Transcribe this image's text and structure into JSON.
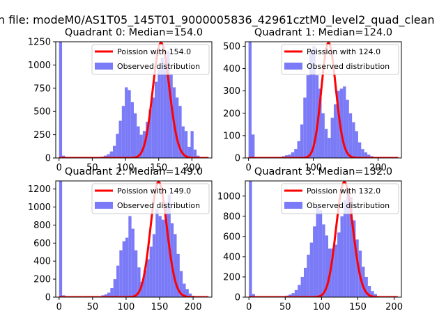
{
  "figure_title": "n file: modeM0/AS1T05_145T01_9000005836_42961cztM0_level2_quad_clean",
  "legend_labels": {
    "observed": "Observed distribution"
  },
  "colors": {
    "hist": "#7b7bf7",
    "poisson": "#ff0000",
    "axis": "#000000"
  },
  "chart_data": [
    {
      "type": "bar",
      "title": "Quadrant 0: Median=154.0",
      "poisson_label": "Poission with 154.0",
      "mean": 154.0,
      "xlim": [
        -5,
        230
      ],
      "ylim": [
        0,
        1250
      ],
      "xticks": [
        0,
        50,
        100,
        150,
        200
      ],
      "xticklabels": [
        "0",
        "50",
        "100",
        "150",
        "200"
      ],
      "yticks": [
        0,
        250,
        500,
        750,
        1000,
        1250
      ],
      "bin_width": 4.5,
      "bins": [
        {
          "x": 0,
          "y": 1250
        },
        {
          "x": 4.5,
          "y": 25
        },
        {
          "x": 54,
          "y": 5
        },
        {
          "x": 58.5,
          "y": 8
        },
        {
          "x": 63,
          "y": 15
        },
        {
          "x": 67.5,
          "y": 25
        },
        {
          "x": 72,
          "y": 40
        },
        {
          "x": 76.5,
          "y": 70
        },
        {
          "x": 81,
          "y": 130
        },
        {
          "x": 85.5,
          "y": 260
        },
        {
          "x": 90,
          "y": 400
        },
        {
          "x": 94.5,
          "y": 560
        },
        {
          "x": 99,
          "y": 760
        },
        {
          "x": 103.5,
          "y": 730
        },
        {
          "x": 108,
          "y": 600
        },
        {
          "x": 112.5,
          "y": 480
        },
        {
          "x": 117,
          "y": 340
        },
        {
          "x": 121.5,
          "y": 250
        },
        {
          "x": 126,
          "y": 290
        },
        {
          "x": 130.5,
          "y": 390
        },
        {
          "x": 135,
          "y": 520
        },
        {
          "x": 139.5,
          "y": 650
        },
        {
          "x": 144,
          "y": 820
        },
        {
          "x": 148.5,
          "y": 950
        },
        {
          "x": 153,
          "y": 1080
        },
        {
          "x": 157.5,
          "y": 1030
        },
        {
          "x": 162,
          "y": 1150
        },
        {
          "x": 166.5,
          "y": 900
        },
        {
          "x": 171,
          "y": 760
        },
        {
          "x": 175.5,
          "y": 650
        },
        {
          "x": 180,
          "y": 560
        },
        {
          "x": 184.5,
          "y": 340
        },
        {
          "x": 189,
          "y": 290
        },
        {
          "x": 193.5,
          "y": 120
        },
        {
          "x": 198,
          "y": 290
        },
        {
          "x": 202.5,
          "y": 90
        },
        {
          "x": 207,
          "y": 25
        },
        {
          "x": 211.5,
          "y": 5
        }
      ]
    },
    {
      "type": "bar",
      "title": "Quadrant 1: Median=124.0",
      "poisson_label": "Poission with 124.0",
      "mean": 124.0,
      "xlim": [
        -5,
        236
      ],
      "ylim": [
        0,
        520
      ],
      "xticks": [
        0,
        100,
        200
      ],
      "xticklabels": [
        "0",
        "100",
        "200"
      ],
      "yticks": [
        0,
        100,
        200,
        300,
        400,
        500
      ],
      "bin_width": 4.7,
      "bins": [
        {
          "x": 0,
          "y": 520
        },
        {
          "x": 4.7,
          "y": 105
        },
        {
          "x": 47,
          "y": 5
        },
        {
          "x": 51.7,
          "y": 8
        },
        {
          "x": 56.4,
          "y": 12
        },
        {
          "x": 61.1,
          "y": 15
        },
        {
          "x": 65.8,
          "y": 25
        },
        {
          "x": 70.5,
          "y": 40
        },
        {
          "x": 75.2,
          "y": 75
        },
        {
          "x": 79.9,
          "y": 150
        },
        {
          "x": 84.6,
          "y": 270
        },
        {
          "x": 89.3,
          "y": 370
        },
        {
          "x": 94,
          "y": 480
        },
        {
          "x": 98.7,
          "y": 500
        },
        {
          "x": 103.4,
          "y": 370
        },
        {
          "x": 108.1,
          "y": 310
        },
        {
          "x": 112.8,
          "y": 200
        },
        {
          "x": 117.5,
          "y": 130
        },
        {
          "x": 122.2,
          "y": 90
        },
        {
          "x": 126.9,
          "y": 180
        },
        {
          "x": 131.6,
          "y": 240
        },
        {
          "x": 136.3,
          "y": 300
        },
        {
          "x": 141,
          "y": 310
        },
        {
          "x": 145.7,
          "y": 320
        },
        {
          "x": 150.4,
          "y": 260
        },
        {
          "x": 155.1,
          "y": 200
        },
        {
          "x": 159.8,
          "y": 160
        },
        {
          "x": 164.5,
          "y": 120
        },
        {
          "x": 169.2,
          "y": 70
        },
        {
          "x": 173.9,
          "y": 40
        },
        {
          "x": 178.6,
          "y": 25
        },
        {
          "x": 183.3,
          "y": 15
        },
        {
          "x": 188,
          "y": 8
        }
      ]
    },
    {
      "type": "bar",
      "title": "Quadrant 2: Median=149.0",
      "poisson_label": "Poission with 149.0",
      "mean": 149.0,
      "xlim": [
        -5,
        228
      ],
      "ylim": [
        0,
        1290
      ],
      "xticks": [
        0,
        50,
        100,
        150,
        200
      ],
      "xticklabels": [
        "0",
        "50",
        "100",
        "150",
        "200"
      ],
      "yticks": [
        0,
        200,
        400,
        600,
        800,
        1000,
        1200
      ],
      "bin_width": 4.5,
      "bins": [
        {
          "x": 0,
          "y": 1290
        },
        {
          "x": 4.5,
          "y": 20
        },
        {
          "x": 54,
          "y": 5
        },
        {
          "x": 58.5,
          "y": 10
        },
        {
          "x": 63,
          "y": 20
        },
        {
          "x": 67.5,
          "y": 30
        },
        {
          "x": 72,
          "y": 50
        },
        {
          "x": 76.5,
          "y": 100
        },
        {
          "x": 81,
          "y": 200
        },
        {
          "x": 85.5,
          "y": 350
        },
        {
          "x": 90,
          "y": 520
        },
        {
          "x": 94.5,
          "y": 620
        },
        {
          "x": 99,
          "y": 660
        },
        {
          "x": 103.5,
          "y": 900
        },
        {
          "x": 108,
          "y": 760
        },
        {
          "x": 112.5,
          "y": 520
        },
        {
          "x": 117,
          "y": 330
        },
        {
          "x": 121.5,
          "y": 170
        },
        {
          "x": 126,
          "y": 300
        },
        {
          "x": 130.5,
          "y": 420
        },
        {
          "x": 135,
          "y": 560
        },
        {
          "x": 139.5,
          "y": 700
        },
        {
          "x": 144,
          "y": 980
        },
        {
          "x": 148.5,
          "y": 900
        },
        {
          "x": 153,
          "y": 860
        },
        {
          "x": 157.5,
          "y": 1050
        },
        {
          "x": 162,
          "y": 1140
        },
        {
          "x": 166.5,
          "y": 820
        },
        {
          "x": 171,
          "y": 700
        },
        {
          "x": 175.5,
          "y": 480
        },
        {
          "x": 180,
          "y": 290
        },
        {
          "x": 184.5,
          "y": 150
        },
        {
          "x": 189,
          "y": 90
        },
        {
          "x": 193.5,
          "y": 40
        },
        {
          "x": 198,
          "y": 15
        }
      ]
    },
    {
      "type": "bar",
      "title": "Quadrant 3: Median=132.0",
      "poisson_label": "Poission with 132.0",
      "mean": 132.0,
      "xlim": [
        -5,
        210
      ],
      "ylim": [
        0,
        1150
      ],
      "xticks": [
        0,
        50,
        100,
        150,
        200
      ],
      "xticklabels": [
        "0",
        "50",
        "100",
        "150",
        "200"
      ],
      "yticks": [
        0,
        200,
        400,
        600,
        800,
        1000
      ],
      "bin_width": 4.2,
      "bins": [
        {
          "x": 0,
          "y": 1150
        },
        {
          "x": 4.2,
          "y": 30
        },
        {
          "x": 42,
          "y": 5
        },
        {
          "x": 46.2,
          "y": 8
        },
        {
          "x": 50.4,
          "y": 15
        },
        {
          "x": 54.6,
          "y": 25
        },
        {
          "x": 58.8,
          "y": 40
        },
        {
          "x": 63,
          "y": 70
        },
        {
          "x": 67.2,
          "y": 120
        },
        {
          "x": 71.4,
          "y": 200
        },
        {
          "x": 75.6,
          "y": 290
        },
        {
          "x": 79.8,
          "y": 420
        },
        {
          "x": 84,
          "y": 540
        },
        {
          "x": 88.2,
          "y": 700
        },
        {
          "x": 92.4,
          "y": 900
        },
        {
          "x": 96.6,
          "y": 860
        },
        {
          "x": 100.8,
          "y": 720
        },
        {
          "x": 105,
          "y": 610
        },
        {
          "x": 109.2,
          "y": 480
        },
        {
          "x": 113.4,
          "y": 480
        },
        {
          "x": 117.6,
          "y": 520
        },
        {
          "x": 121.8,
          "y": 640
        },
        {
          "x": 126,
          "y": 800
        },
        {
          "x": 130.2,
          "y": 960
        },
        {
          "x": 134.4,
          "y": 1040
        },
        {
          "x": 138.6,
          "y": 990
        },
        {
          "x": 142.8,
          "y": 760
        },
        {
          "x": 147,
          "y": 570
        },
        {
          "x": 151.2,
          "y": 460
        },
        {
          "x": 155.4,
          "y": 300
        },
        {
          "x": 159.6,
          "y": 200
        },
        {
          "x": 163.8,
          "y": 110
        },
        {
          "x": 168,
          "y": 60
        },
        {
          "x": 172.2,
          "y": 30
        },
        {
          "x": 176.4,
          "y": 10
        }
      ]
    }
  ]
}
